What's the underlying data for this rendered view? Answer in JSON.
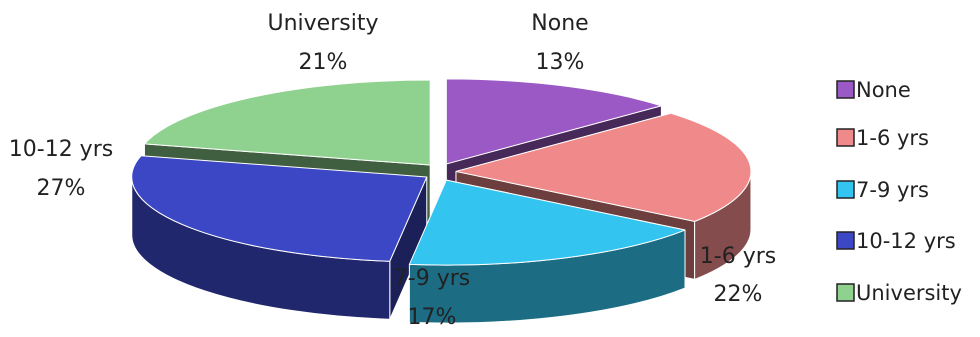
{
  "chart_data": {
    "type": "pie",
    "variant": "3d-exploded",
    "title": "",
    "slices": [
      {
        "name": "None",
        "label": "None",
        "pct_label": "13%",
        "value": 13,
        "color": "#9b59c6"
      },
      {
        "name": "1-6 yrs",
        "label": "1-6 yrs",
        "pct_label": "22%",
        "value": 22,
        "color": "#f08a8a"
      },
      {
        "name": "7-9 yrs",
        "label": "7-9 yrs",
        "pct_label": "17%",
        "value": 17,
        "color": "#33c4f0"
      },
      {
        "name": "10-12 yrs",
        "label": "10-12 yrs",
        "pct_label": "27%",
        "value": 27,
        "color": "#3b47c4"
      },
      {
        "name": "University",
        "label": "University",
        "pct_label": "21%",
        "value": 21,
        "color": "#8fd18f"
      }
    ],
    "legend": {
      "placement": "right",
      "items": [
        "None",
        "1-6 yrs",
        "7-9 yrs",
        "10-12 yrs",
        "University"
      ]
    }
  }
}
